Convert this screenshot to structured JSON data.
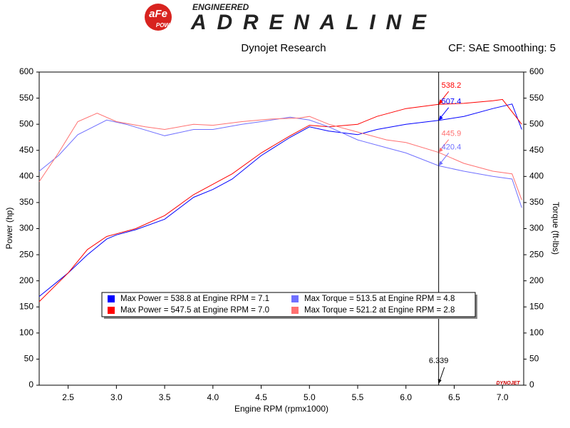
{
  "header": {
    "brand": "aFe",
    "brand_sub": "POWER",
    "tagline": "ENGINEERED",
    "name": "ADRENALINE",
    "left": "Dynojet Research",
    "right": "CF: SAE Smoothing: 5",
    "watermark": "DYNOJET"
  },
  "chart_data": {
    "type": "line",
    "xlabel": "Engine RPM (rpmx1000)",
    "ylabel": "Power (hp)",
    "y2label": "Torque (ft-lbs)",
    "xlim": [
      2.2,
      7.22
    ],
    "ylim": [
      0,
      600
    ],
    "y2lim": [
      0,
      600
    ],
    "xticks": [
      2.5,
      {
        "value": 3,
        "label": "3.0"
      },
      3.5,
      {
        "value": 4,
        "label": "4.0"
      },
      4.5,
      {
        "value": 5,
        "label": "5.0"
      },
      5.5,
      {
        "value": 6,
        "label": "6.0"
      },
      6.5,
      {
        "value": 7,
        "label": "7.0"
      }
    ],
    "yticks": [
      0,
      50,
      100,
      150,
      200,
      250,
      300,
      350,
      400,
      450,
      500,
      550,
      600
    ],
    "y2ticks": [
      0,
      50,
      100,
      150,
      200,
      250,
      300,
      350,
      400,
      450,
      500,
      550,
      600
    ],
    "grid": false,
    "legend": "lower-center",
    "series": [
      {
        "name": "Max Power = 538.8 at Engine RPM = 7.1",
        "color": "#0000ff",
        "x": [
          2.2,
          2.5,
          2.7,
          2.9,
          3.0,
          3.2,
          3.5,
          3.8,
          4.0,
          4.2,
          4.5,
          4.8,
          5.0,
          5.2,
          5.5,
          5.7,
          6.0,
          6.339,
          6.6,
          6.9,
          7.1,
          7.2
        ],
        "values": [
          170,
          215,
          250,
          280,
          288,
          298,
          318,
          360,
          375,
          395,
          440,
          475,
          495,
          487,
          480,
          490,
          500,
          507.4,
          515,
          530,
          538.8,
          490
        ]
      },
      {
        "name": "Max Power = 547.5 at Engine RPM = 7.0",
        "color": "#ff0000",
        "x": [
          2.2,
          2.5,
          2.7,
          2.9,
          3.0,
          3.2,
          3.5,
          3.8,
          4.0,
          4.2,
          4.5,
          4.8,
          5.0,
          5.2,
          5.5,
          5.7,
          6.0,
          6.339,
          6.6,
          6.9,
          7.0,
          7.2
        ],
        "values": [
          160,
          215,
          260,
          285,
          290,
          300,
          325,
          365,
          385,
          405,
          445,
          478,
          498,
          495,
          500,
          515,
          530,
          538.2,
          540,
          545,
          547.5,
          500
        ]
      },
      {
        "name": "Max Torque = 513.5 at Engine RPM = 4.8",
        "color": "#7070ff",
        "axis": "y2",
        "x": [
          2.2,
          2.4,
          2.6,
          2.9,
          3.1,
          3.5,
          3.8,
          4.0,
          4.3,
          4.5,
          4.8,
          5.0,
          5.2,
          5.5,
          5.8,
          6.0,
          6.339,
          6.6,
          6.9,
          7.1,
          7.2
        ],
        "values": [
          410,
          440,
          480,
          508,
          500,
          478,
          490,
          490,
          500,
          505,
          513.5,
          508,
          495,
          470,
          455,
          445,
          420.4,
          410,
          400,
          395,
          340
        ]
      },
      {
        "name": "Max Torque = 521.2 at Engine RPM = 2.8",
        "color": "#ff7070",
        "axis": "y2",
        "x": [
          2.2,
          2.4,
          2.6,
          2.8,
          3.0,
          3.3,
          3.5,
          3.8,
          4.0,
          4.3,
          4.6,
          4.9,
          5.0,
          5.2,
          5.5,
          5.8,
          6.0,
          6.339,
          6.6,
          6.9,
          7.1,
          7.2
        ],
        "values": [
          390,
          445,
          505,
          521.2,
          505,
          495,
          490,
          500,
          498,
          505,
          510,
          512,
          515,
          500,
          485,
          470,
          465,
          445.9,
          425,
          410,
          405,
          355
        ]
      }
    ],
    "cursor_x": 6.339,
    "annotations": [
      {
        "value": 538.2,
        "color": "#ff0000"
      },
      {
        "value": 507.4,
        "color": "#0000ff"
      },
      {
        "value": 445.9,
        "color": "#ff7070"
      },
      {
        "value": 420.4,
        "color": "#7070ff"
      }
    ]
  }
}
